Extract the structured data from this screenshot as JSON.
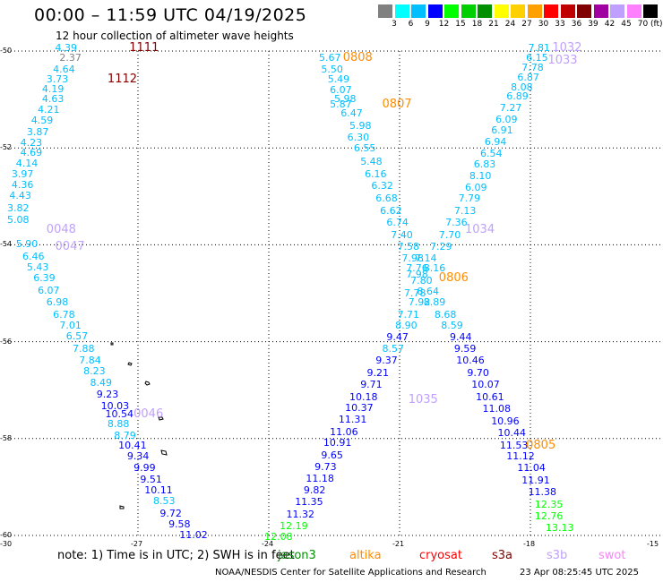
{
  "header": {
    "title": "00:00 – 11:59 UTC 04/19/2025",
    "subtitle": "12 hour collection of altimeter wave heights"
  },
  "color_scale": {
    "ticks": [
      "3",
      "6",
      "9",
      "12",
      "15",
      "18",
      "21",
      "24",
      "27",
      "30",
      "33",
      "36",
      "39",
      "42",
      "45",
      "70"
    ],
    "unit": "(ft)",
    "colors": [
      "#808080",
      "#00ffff",
      "#00bfff",
      "#0000ff",
      "#00ff00",
      "#00d000",
      "#009000",
      "#ffff00",
      "#ffd000",
      "#ffa000",
      "#ff0000",
      "#c00000",
      "#800000",
      "#a000a0",
      "#c0a0ff",
      "#ff80ff",
      "#000000"
    ]
  },
  "axes": {
    "lat_labels": [
      "-50",
      "-52",
      "-54",
      "-56",
      "-58",
      "-60"
    ],
    "lon_labels": [
      "-30",
      "-27",
      "-24",
      "-21",
      "-18",
      "-15"
    ]
  },
  "passes": [
    {
      "text": "1111",
      "color": "#800000",
      "lon": -27.2,
      "lat": -49.95
    },
    {
      "text": "1112",
      "color": "#800000",
      "lon": -27.7,
      "lat": -50.6
    },
    {
      "text": "0048",
      "color": "#c0a0ff",
      "lon": -29.1,
      "lat": -53.7
    },
    {
      "text": "0047",
      "color": "#c0a0ff",
      "lon": -28.9,
      "lat": -54.05
    },
    {
      "text": "0046",
      "color": "#c0a0ff",
      "lon": -27.1,
      "lat": -57.5
    },
    {
      "text": "0808",
      "color": "#ff8c00",
      "lon": -22.3,
      "lat": -50.15
    },
    {
      "text": "0807",
      "color": "#ff8c00",
      "lon": -21.4,
      "lat": -51.1
    },
    {
      "text": "0806",
      "color": "#ff8c00",
      "lon": -20.1,
      "lat": -54.7
    },
    {
      "text": "1035",
      "color": "#c0a0ff",
      "lon": -20.8,
      "lat": -57.2
    },
    {
      "text": "1034",
      "color": "#c0a0ff",
      "lon": -19.5,
      "lat": -53.7
    },
    {
      "text": "1032",
      "color": "#c0a0ff",
      "lon": -17.5,
      "lat": -49.95
    },
    {
      "text": "1033",
      "color": "#c0a0ff",
      "lon": -17.6,
      "lat": -50.2
    },
    {
      "text": "0805",
      "color": "#ff8c00",
      "lon": -18.1,
      "lat": -58.15
    }
  ],
  "observations": [
    {
      "v": "4.39",
      "c": "#00bfff",
      "lon": -28.9,
      "lat": -49.95
    },
    {
      "v": "2.37",
      "c": "#808080",
      "lon": -28.8,
      "lat": -50.15
    },
    {
      "v": "4.64",
      "c": "#00bfff",
      "lon": -28.95,
      "lat": -50.38
    },
    {
      "v": "3.73",
      "c": "#00bfff",
      "lon": -29.1,
      "lat": -50.6
    },
    {
      "v": "4.19",
      "c": "#00bfff",
      "lon": -29.2,
      "lat": -50.8
    },
    {
      "v": "4.63",
      "c": "#00bfff",
      "lon": -29.2,
      "lat": -51.0
    },
    {
      "v": "4.21",
      "c": "#00bfff",
      "lon": -29.3,
      "lat": -51.22
    },
    {
      "v": "4.59",
      "c": "#00bfff",
      "lon": -29.45,
      "lat": -51.45
    },
    {
      "v": "3.87",
      "c": "#00bfff",
      "lon": -29.55,
      "lat": -51.68
    },
    {
      "v": "4.23",
      "c": "#00bfff",
      "lon": -29.7,
      "lat": -51.9
    },
    {
      "v": "4.69",
      "c": "#00bfff",
      "lon": -29.7,
      "lat": -52.1
    },
    {
      "v": "4.14",
      "c": "#00bfff",
      "lon": -29.8,
      "lat": -52.32
    },
    {
      "v": "3.97",
      "c": "#00bfff",
      "lon": -29.9,
      "lat": -52.55
    },
    {
      "v": "4.36",
      "c": "#00bfff",
      "lon": -29.9,
      "lat": -52.78
    },
    {
      "v": "4.43",
      "c": "#00bfff",
      "lon": -29.95,
      "lat": -53.0
    },
    {
      "v": "3.82",
      "c": "#00bfff",
      "lon": -30.0,
      "lat": -53.25
    },
    {
      "v": "5.08",
      "c": "#00bfff",
      "lon": -30.0,
      "lat": -53.5
    },
    {
      "v": "5.90",
      "c": "#00bfff",
      "lon": -29.8,
      "lat": -54.0
    },
    {
      "v": "6.46",
      "c": "#00bfff",
      "lon": -29.65,
      "lat": -54.25
    },
    {
      "v": "5.43",
      "c": "#00bfff",
      "lon": -29.55,
      "lat": -54.48
    },
    {
      "v": "6.39",
      "c": "#00bfff",
      "lon": -29.4,
      "lat": -54.7
    },
    {
      "v": "6.07",
      "c": "#00bfff",
      "lon": -29.3,
      "lat": -54.95
    },
    {
      "v": "6.98",
      "c": "#00bfff",
      "lon": -29.1,
      "lat": -55.2
    },
    {
      "v": "6.78",
      "c": "#00bfff",
      "lon": -28.95,
      "lat": -55.45
    },
    {
      "v": "7.01",
      "c": "#00bfff",
      "lon": -28.8,
      "lat": -55.68
    },
    {
      "v": "6.57",
      "c": "#00bfff",
      "lon": -28.65,
      "lat": -55.9
    },
    {
      "v": "7.88",
      "c": "#00bfff",
      "lon": -28.5,
      "lat": -56.15
    },
    {
      "v": "7.84",
      "c": "#00bfff",
      "lon": -28.35,
      "lat": -56.4
    },
    {
      "v": "8.23",
      "c": "#00bfff",
      "lon": -28.25,
      "lat": -56.62
    },
    {
      "v": "8.49",
      "c": "#00bfff",
      "lon": -28.1,
      "lat": -56.85
    },
    {
      "v": "9.23",
      "c": "#0000ff",
      "lon": -27.95,
      "lat": -57.1
    },
    {
      "v": "10.03",
      "c": "#0000ff",
      "lon": -27.85,
      "lat": -57.33
    },
    {
      "v": "10.54",
      "c": "#0000ff",
      "lon": -27.75,
      "lat": -57.5
    },
    {
      "v": "8.88",
      "c": "#00bfff",
      "lon": -27.7,
      "lat": -57.7
    },
    {
      "v": "8.79",
      "c": "#00bfff",
      "lon": -27.55,
      "lat": -57.95
    },
    {
      "v": "10.41",
      "c": "#0000ff",
      "lon": -27.45,
      "lat": -58.15
    },
    {
      "v": "9.34",
      "c": "#0000ff",
      "lon": -27.25,
      "lat": -58.38
    },
    {
      "v": "9.99",
      "c": "#0000ff",
      "lon": -27.1,
      "lat": -58.62
    },
    {
      "v": "9.51",
      "c": "#0000ff",
      "lon": -26.95,
      "lat": -58.85
    },
    {
      "v": "10.11",
      "c": "#0000ff",
      "lon": -26.85,
      "lat": -59.08
    },
    {
      "v": "8.53",
      "c": "#00bfff",
      "lon": -26.65,
      "lat": -59.3
    },
    {
      "v": "9.72",
      "c": "#0000ff",
      "lon": -26.5,
      "lat": -59.55
    },
    {
      "v": "9.58",
      "c": "#0000ff",
      "lon": -26.3,
      "lat": -59.78
    },
    {
      "v": "11.02",
      "c": "#0000ff",
      "lon": -26.05,
      "lat": -60.0
    },
    {
      "v": "5.67",
      "c": "#00bfff",
      "lon": -22.85,
      "lat": -50.15
    },
    {
      "v": "5.50",
      "c": "#00bfff",
      "lon": -22.8,
      "lat": -50.38
    },
    {
      "v": "5.49",
      "c": "#00bfff",
      "lon": -22.65,
      "lat": -50.6
    },
    {
      "v": "6.07",
      "c": "#00bfff",
      "lon": -22.6,
      "lat": -50.82
    },
    {
      "v": "5.98",
      "c": "#00bfff",
      "lon": -22.5,
      "lat": -51.0
    },
    {
      "v": "5.87",
      "c": "#00bfff",
      "lon": -22.6,
      "lat": -51.1
    },
    {
      "v": "6.47",
      "c": "#00bfff",
      "lon": -22.35,
      "lat": -51.3
    },
    {
      "v": "5.98",
      "c": "#00bfff",
      "lon": -22.15,
      "lat": -51.55
    },
    {
      "v": "6.30",
      "c": "#00bfff",
      "lon": -22.2,
      "lat": -51.8
    },
    {
      "v": "6.55",
      "c": "#00bfff",
      "lon": -22.05,
      "lat": -52.02
    },
    {
      "v": "5.48",
      "c": "#00bfff",
      "lon": -21.9,
      "lat": -52.3
    },
    {
      "v": "6.16",
      "c": "#00bfff",
      "lon": -21.8,
      "lat": -52.55
    },
    {
      "v": "6.32",
      "c": "#00bfff",
      "lon": -21.65,
      "lat": -52.8
    },
    {
      "v": "6.68",
      "c": "#00bfff",
      "lon": -21.55,
      "lat": -53.05
    },
    {
      "v": "6.62",
      "c": "#00bfff",
      "lon": -21.45,
      "lat": -53.3
    },
    {
      "v": "6.74",
      "c": "#00bfff",
      "lon": -21.3,
      "lat": -53.55
    },
    {
      "v": "7.40",
      "c": "#00bfff",
      "lon": -21.2,
      "lat": -53.8
    },
    {
      "v": "7.58",
      "c": "#00bfff",
      "lon": -21.05,
      "lat": -54.05
    },
    {
      "v": "7.98",
      "c": "#00bfff",
      "lon": -20.95,
      "lat": -54.28
    },
    {
      "v": "7.14",
      "c": "#00bfff",
      "lon": -20.65,
      "lat": -54.28
    },
    {
      "v": "7.76",
      "c": "#00bfff",
      "lon": -20.85,
      "lat": -54.5
    },
    {
      "v": "7.98",
      "c": "#00bfff",
      "lon": -20.85,
      "lat": -54.62
    },
    {
      "v": "7.80",
      "c": "#00bfff",
      "lon": -20.75,
      "lat": -54.75
    },
    {
      "v": "7.78",
      "c": "#00bfff",
      "lon": -20.9,
      "lat": -55.0
    },
    {
      "v": "7.92",
      "c": "#00bfff",
      "lon": -20.8,
      "lat": -55.2
    },
    {
      "v": "7.71",
      "c": "#00bfff",
      "lon": -21.05,
      "lat": -55.45
    },
    {
      "v": "8.90",
      "c": "#00bfff",
      "lon": -21.1,
      "lat": -55.68
    },
    {
      "v": "9.47",
      "c": "#0000ff",
      "lon": -21.3,
      "lat": -55.92
    },
    {
      "v": "8.57",
      "c": "#00bfff",
      "lon": -21.4,
      "lat": -56.15
    },
    {
      "v": "9.37",
      "c": "#0000ff",
      "lon": -21.55,
      "lat": -56.4
    },
    {
      "v": "9.21",
      "c": "#0000ff",
      "lon": -21.75,
      "lat": -56.65
    },
    {
      "v": "9.71",
      "c": "#0000ff",
      "lon": -21.9,
      "lat": -56.9
    },
    {
      "v": "10.18",
      "c": "#0000ff",
      "lon": -22.15,
      "lat": -57.15
    },
    {
      "v": "10.37",
      "c": "#0000ff",
      "lon": -22.25,
      "lat": -57.38
    },
    {
      "v": "11.31",
      "c": "#0000ff",
      "lon": -22.4,
      "lat": -57.62
    },
    {
      "v": "11.06",
      "c": "#0000ff",
      "lon": -22.6,
      "lat": -57.88
    },
    {
      "v": "10.91",
      "c": "#0000ff",
      "lon": -22.75,
      "lat": -58.1
    },
    {
      "v": "9.65",
      "c": "#0000ff",
      "lon": -22.8,
      "lat": -58.35
    },
    {
      "v": "9.73",
      "c": "#0000ff",
      "lon": -22.95,
      "lat": -58.6
    },
    {
      "v": "11.18",
      "c": "#0000ff",
      "lon": -23.15,
      "lat": -58.83
    },
    {
      "v": "9.82",
      "c": "#0000ff",
      "lon": -23.2,
      "lat": -59.08
    },
    {
      "v": "11.35",
      "c": "#0000ff",
      "lon": -23.4,
      "lat": -59.32
    },
    {
      "v": "11.32",
      "c": "#0000ff",
      "lon": -23.6,
      "lat": -59.58
    },
    {
      "v": "12.19",
      "c": "#00ff00",
      "lon": -23.75,
      "lat": -59.82
    },
    {
      "v": "12.08",
      "c": "#00ff00",
      "lon": -24.1,
      "lat": -60.03
    },
    {
      "v": "7.81",
      "c": "#00bfff",
      "lon": -18.05,
      "lat": -49.95
    },
    {
      "v": "6.15",
      "c": "#00bfff",
      "lon": -18.1,
      "lat": -50.15
    },
    {
      "v": "7.78",
      "c": "#00bfff",
      "lon": -18.2,
      "lat": -50.35
    },
    {
      "v": "6.87",
      "c": "#00bfff",
      "lon": -18.3,
      "lat": -50.55
    },
    {
      "v": "8.08",
      "c": "#00bfff",
      "lon": -18.45,
      "lat": -50.75
    },
    {
      "v": "6.89",
      "c": "#00bfff",
      "lon": -18.55,
      "lat": -50.95
    },
    {
      "v": "7.27",
      "c": "#00bfff",
      "lon": -18.7,
      "lat": -51.18
    },
    {
      "v": "6.09",
      "c": "#00bfff",
      "lon": -18.8,
      "lat": -51.42
    },
    {
      "v": "6.91",
      "c": "#00bfff",
      "lon": -18.9,
      "lat": -51.65
    },
    {
      "v": "6.94",
      "c": "#00bfff",
      "lon": -19.05,
      "lat": -51.88
    },
    {
      "v": "6.54",
      "c": "#00bfff",
      "lon": -19.15,
      "lat": -52.12
    },
    {
      "v": "6.83",
      "c": "#00bfff",
      "lon": -19.3,
      "lat": -52.35
    },
    {
      "v": "8.10",
      "c": "#00bfff",
      "lon": -19.4,
      "lat": -52.58
    },
    {
      "v": "6.09",
      "c": "#00bfff",
      "lon": -19.5,
      "lat": -52.82
    },
    {
      "v": "7.79",
      "c": "#00bfff",
      "lon": -19.65,
      "lat": -53.05
    },
    {
      "v": "7.13",
      "c": "#00bfff",
      "lon": -19.75,
      "lat": -53.3
    },
    {
      "v": "7.36",
      "c": "#00bfff",
      "lon": -19.95,
      "lat": -53.55
    },
    {
      "v": "7.70",
      "c": "#00bfff",
      "lon": -20.1,
      "lat": -53.8
    },
    {
      "v": "7.29",
      "c": "#00bfff",
      "lon": -20.3,
      "lat": -54.05
    },
    {
      "v": "8.16",
      "c": "#00bfff",
      "lon": -20.45,
      "lat": -54.5
    },
    {
      "v": "8.64",
      "c": "#00bfff",
      "lon": -20.6,
      "lat": -54.98
    },
    {
      "v": "8.89",
      "c": "#00bfff",
      "lon": -20.45,
      "lat": -55.2
    },
    {
      "v": "8.68",
      "c": "#00bfff",
      "lon": -20.2,
      "lat": -55.45
    },
    {
      "v": "8.59",
      "c": "#00bfff",
      "lon": -20.05,
      "lat": -55.68
    },
    {
      "v": "9.44",
      "c": "#0000ff",
      "lon": -19.85,
      "lat": -55.92
    },
    {
      "v": "9.59",
      "c": "#0000ff",
      "lon": -19.75,
      "lat": -56.15
    },
    {
      "v": "10.46",
      "c": "#0000ff",
      "lon": -19.7,
      "lat": -56.4
    },
    {
      "v": "9.70",
      "c": "#0000ff",
      "lon": -19.45,
      "lat": -56.65
    },
    {
      "v": "10.07",
      "c": "#0000ff",
      "lon": -19.35,
      "lat": -56.9
    },
    {
      "v": "10.61",
      "c": "#0000ff",
      "lon": -19.25,
      "lat": -57.15
    },
    {
      "v": "11.08",
      "c": "#0000ff",
      "lon": -19.1,
      "lat": -57.4
    },
    {
      "v": "10.96",
      "c": "#0000ff",
      "lon": -18.9,
      "lat": -57.65
    },
    {
      "v": "10.44",
      "c": "#0000ff",
      "lon": -18.75,
      "lat": -57.9
    },
    {
      "v": "11.53",
      "c": "#0000ff",
      "lon": -18.7,
      "lat": -58.15
    },
    {
      "v": "11.12",
      "c": "#0000ff",
      "lon": -18.55,
      "lat": -58.38
    },
    {
      "v": "11.04",
      "c": "#0000ff",
      "lon": -18.3,
      "lat": -58.62
    },
    {
      "v": "11.91",
      "c": "#0000ff",
      "lon": -18.2,
      "lat": -58.88
    },
    {
      "v": "11.38",
      "c": "#0000ff",
      "lon": -18.05,
      "lat": -59.12
    },
    {
      "v": "12.35",
      "c": "#00ff00",
      "lon": -17.9,
      "lat": -59.38
    },
    {
      "v": "12.76",
      "c": "#00ff00",
      "lon": -17.9,
      "lat": -59.62
    },
    {
      "v": "13.13",
      "c": "#00ff00",
      "lon": -17.65,
      "lat": -59.85
    }
  ],
  "legend": {
    "note": "note: 1) Time is in UTC; 2) SWH is in feet",
    "items": [
      {
        "label": "jason3",
        "color": "#009000"
      },
      {
        "label": "altika",
        "color": "#ff8c00"
      },
      {
        "label": "cryosat",
        "color": "#ff0000"
      },
      {
        "label": "s3a",
        "color": "#800000"
      },
      {
        "label": "s3b",
        "color": "#c0a0ff"
      },
      {
        "label": "swot",
        "color": "#ff80ff"
      }
    ]
  },
  "footer": {
    "credit": "NOAA/NESDIS Center for Satellite Applications and Research",
    "timestamp": "23 Apr 08:25:45 UTC 2025"
  }
}
